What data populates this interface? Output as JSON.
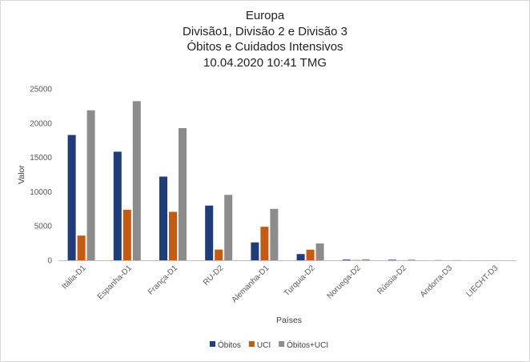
{
  "chart_data": {
    "type": "bar",
    "title": [
      "Europa",
      "Divisão1, Divisão 2 e Divisão 3",
      "Óbitos e Cuidados Intensivos",
      "10.04.2020 10:41 TMG"
    ],
    "xlabel": "Países",
    "ylabel": "Valor",
    "ylim": [
      0,
      25000
    ],
    "yticks": [
      "0",
      "5000",
      "10000",
      "15000",
      "20000",
      "25000"
    ],
    "categories": [
      "Itália-D1",
      "Espanha-D1",
      "França-D1",
      "RU-D2",
      "Alemanha-D1",
      "Turquia-D2",
      "Noruega-D2",
      "Rússia-D2",
      "Andorra-D3",
      "LIECHT-D3"
    ],
    "series": [
      {
        "name": "Óbitos",
        "color": "#1f3d7a",
        "values": [
          18280,
          15840,
          12210,
          7980,
          2610,
          910,
          100,
          80,
          20,
          1
        ]
      },
      {
        "name": "UCI",
        "color": "#c55a11",
        "values": [
          3600,
          7370,
          7070,
          1560,
          4890,
          1550,
          40,
          10,
          5,
          0
        ]
      },
      {
        "name": "Óbitos+UCI",
        "color": "#8c8c8c",
        "values": [
          21880,
          23210,
          19280,
          9540,
          7500,
          2460,
          140,
          90,
          25,
          1
        ]
      }
    ],
    "grid": false,
    "legend": "bottom"
  }
}
